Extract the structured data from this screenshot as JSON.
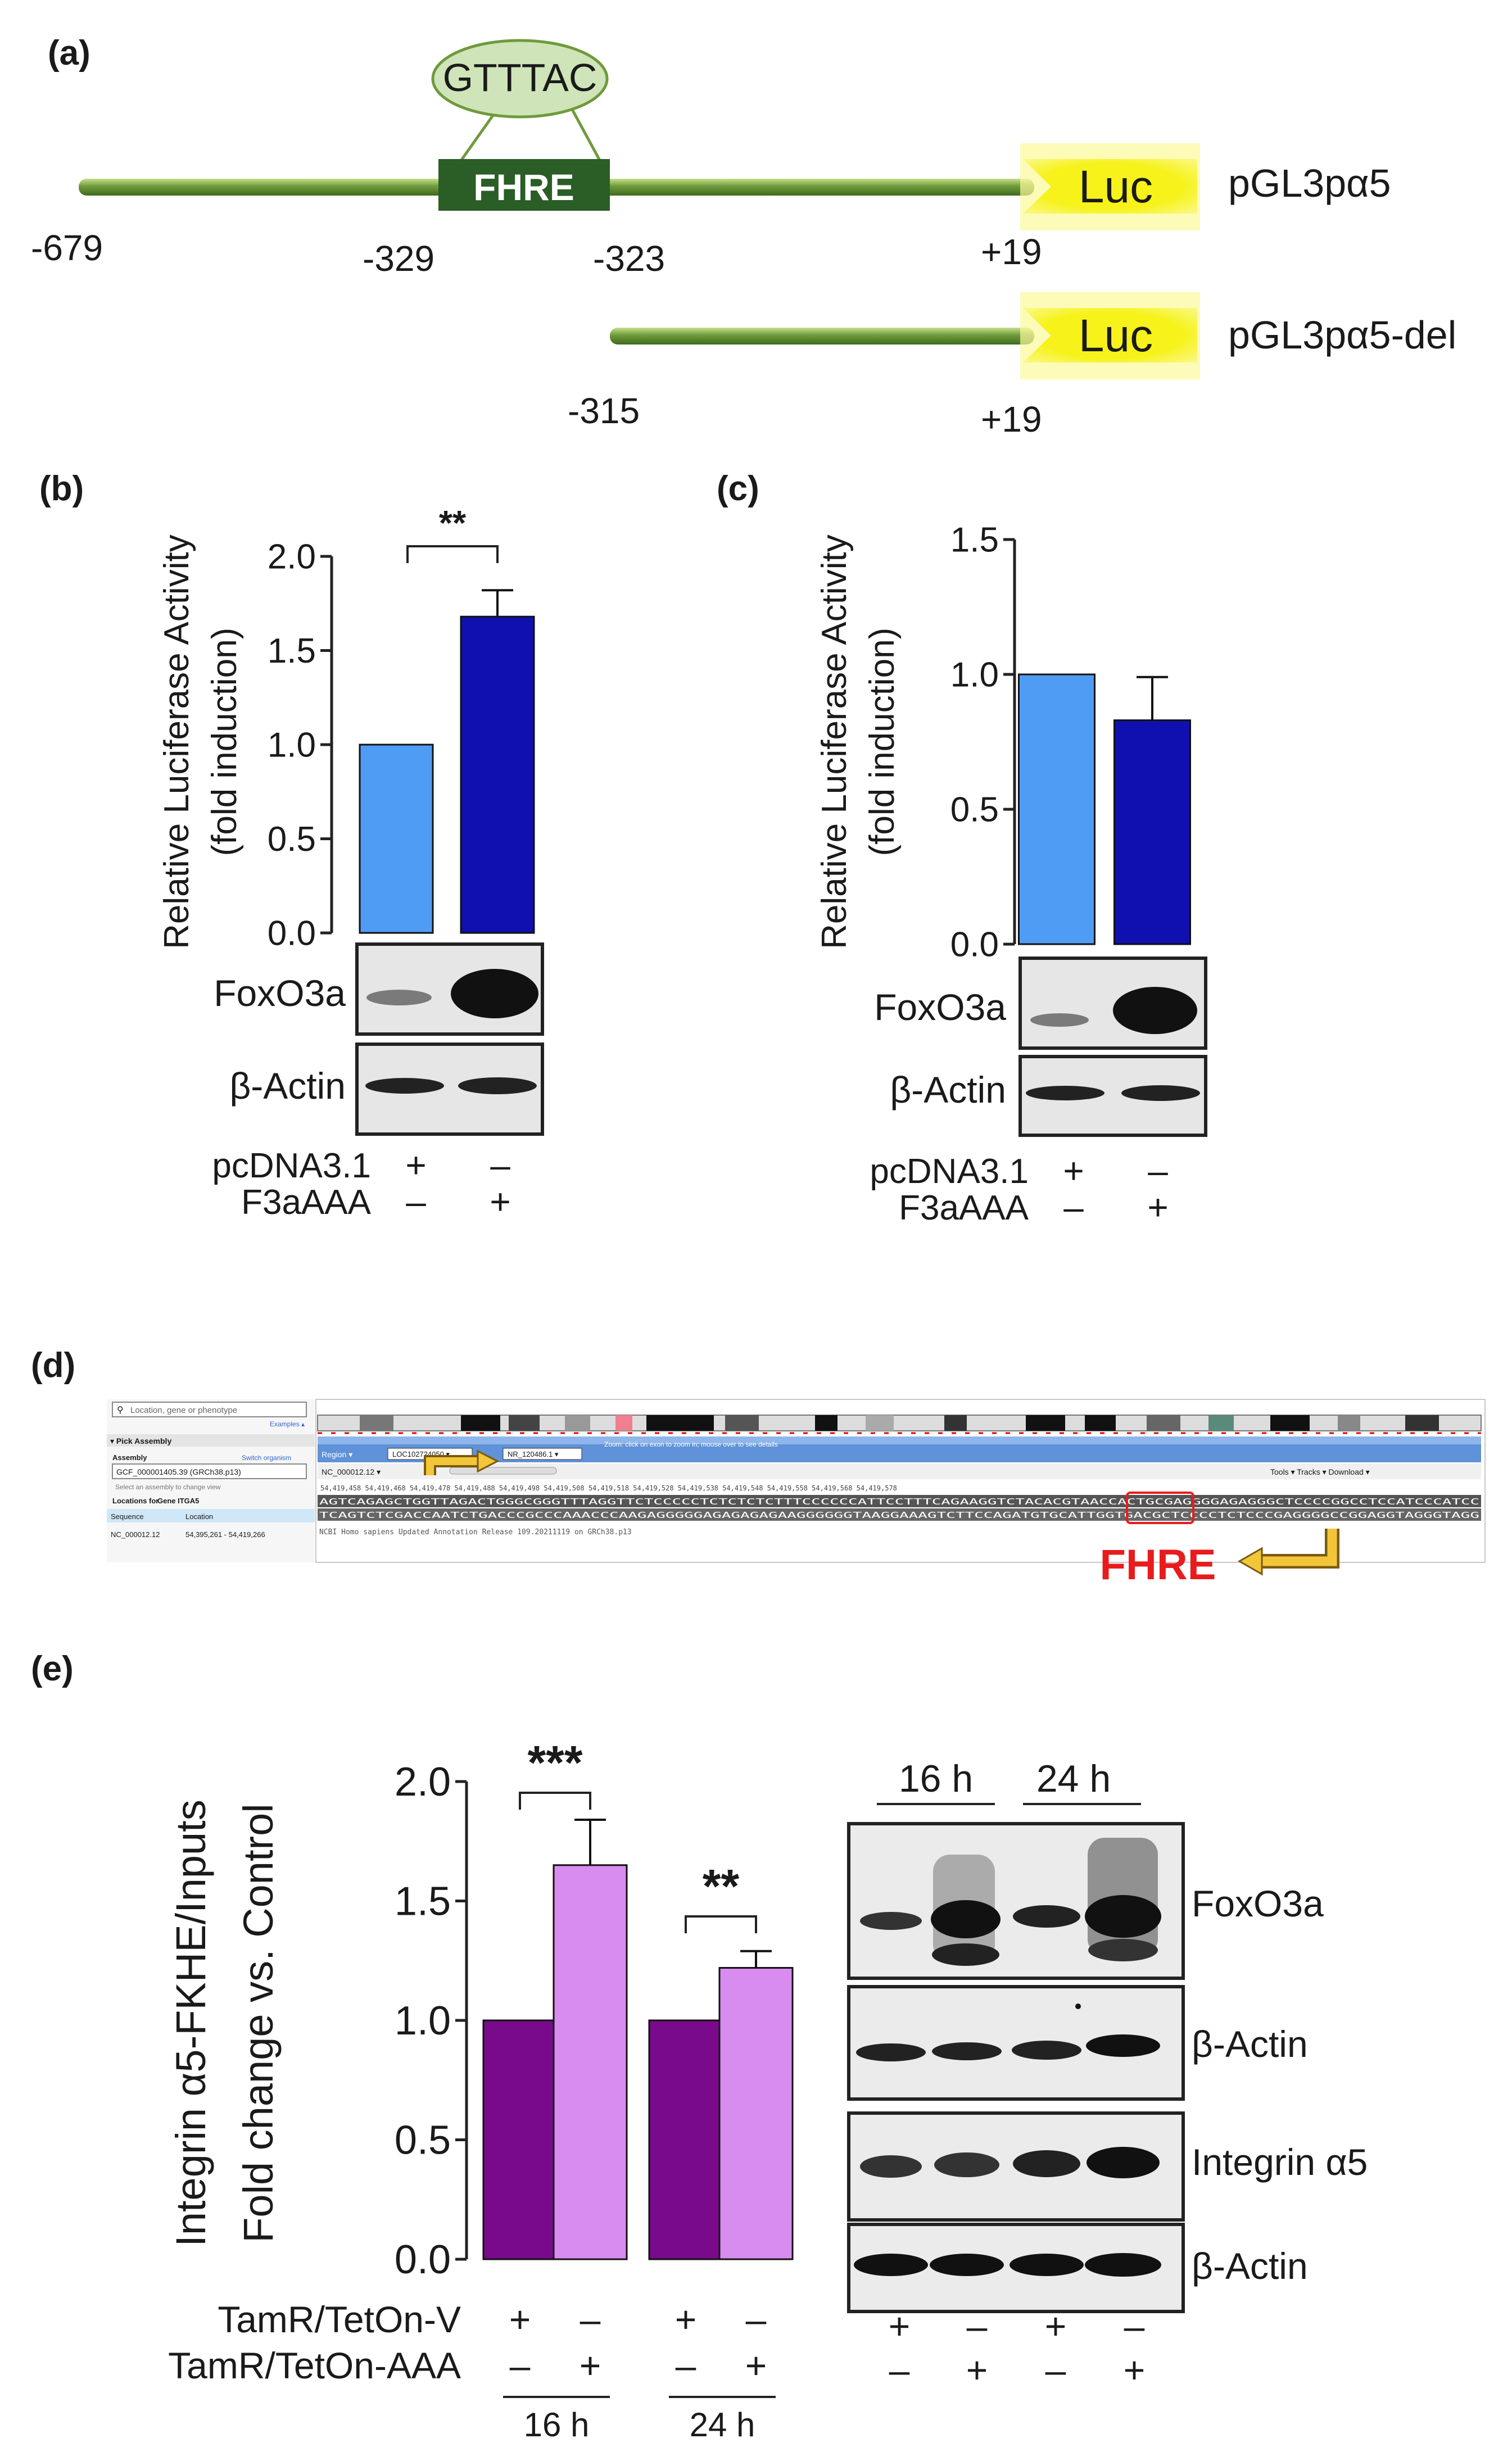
{
  "panel_labels": {
    "a": "(a)",
    "b": "(b)",
    "c": "(c)",
    "d": "(d)",
    "e": "(e)"
  },
  "colors": {
    "ctrl_blue": "#4f9cf5",
    "f3a_blue": "#1010b0",
    "ctrl_purple": "#7a0a8c",
    "aaa_pink": "#d98cf0",
    "fhre_red": "#e81c1c",
    "luc_yellow": "#f3f01c",
    "promoter_green": "#6f9a3c",
    "fhre_box": "#2b5d26"
  },
  "panel_a": {
    "motif": "GTTTAC",
    "fhre": "FHRE",
    "luc": "Luc",
    "construct1": "pGL3pα5",
    "construct2": "pGL3pα5-del",
    "pos_679": "-679",
    "pos_329": "-329",
    "pos_323": "-323",
    "pos_19a": "+19",
    "pos_315": "-315",
    "pos_19b": "+19"
  },
  "blots": {
    "foxo3a": "FoxO3a",
    "actin": "β-Actin",
    "itga5": "Integrin α5",
    "pcdna": "pcDNA3.1",
    "f3aaaa": "F3aAAA",
    "plus": "+",
    "minus": "–",
    "tetv": "TamR/TetOn-V",
    "tetaaa": "TamR/TetOn-AAA",
    "h16": "16 h",
    "h24": "24 h"
  },
  "chart_data": [
    {
      "id": "b",
      "type": "bar",
      "ylabel1": "Relative Luciferase Activity",
      "ylabel2": "(fold induction)",
      "ylim": [
        0,
        2.0
      ],
      "yticks": [
        "0.0",
        "0.5",
        "1.0",
        "1.5",
        "2.0"
      ],
      "categories": [
        "pcDNA3.1",
        "F3aAAA"
      ],
      "values": [
        1.0,
        1.68
      ],
      "errors": [
        0,
        0.14
      ],
      "significance": "**"
    },
    {
      "id": "c",
      "type": "bar",
      "ylabel1": "Relative Luciferase Activity",
      "ylabel2": "(fold induction)",
      "ylim": [
        0,
        1.5
      ],
      "yticks": [
        "0.0",
        "0.5",
        "1.0",
        "1.5"
      ],
      "categories": [
        "pcDNA3.1",
        "F3aAAA"
      ],
      "values": [
        1.0,
        0.83
      ],
      "errors": [
        0,
        0.16
      ]
    },
    {
      "id": "e",
      "type": "bar",
      "ylabel1": "Integrin α5-FKHE/Inputs",
      "ylabel2": "Fold change vs. Control",
      "ylim": [
        0,
        2.0
      ],
      "yticks": [
        "0.0",
        "0.5",
        "1.0",
        "1.5",
        "2.0"
      ],
      "categories": [
        "16 h V",
        "16 h AAA",
        "24 h V",
        "24 h AAA"
      ],
      "values": [
        1.0,
        1.65,
        1.0,
        1.22
      ],
      "errors": [
        0,
        0.19,
        0,
        0.07
      ],
      "significance": [
        "***",
        "**"
      ]
    }
  ],
  "panel_d": {
    "search_placeholder": "Location, gene or phenotype",
    "examples": "Examples ▴",
    "pick_assembly": "▾ Pick Assembly",
    "assembly_label": "Assembly",
    "switch_organism": "Switch organism",
    "assembly_value": "GCF_000001405.39 (GRCh38.p13)",
    "assembly_hint": "Select an assembly to change view",
    "locations_for": "Locations for",
    "gene": "Gene ITGA5",
    "col_sequence": "Sequence",
    "col_location": "Location",
    "row_seq": "NC_000012.12",
    "row_loc": "54,395,261 - 54,419,266",
    "region": "Region ▾",
    "gene_box": "LOC102724050 ▾",
    "transcript_box": "NR_120486.1 ▾",
    "nc_label": "NC_000012.12 ▾",
    "tools": "Tools ▾  Tracks ▾  Download ▾",
    "hint": "Zoom: click on exon to zoom in; mouse over to see details",
    "seq_top": "AGTCAGAGCTGGTTAGACTGGGCGGGTTTAGGTTCTCCCCCTCTCTCTCTTTCCCCCCATTCCTTTCAGAAGGTCTACACGTAACCACTGCGAGGGGAGAGGGCTCCCCGGCCTCCATCCCATCC",
    "seq_bot": "TCAGTCTCGACCAATCTGACCCGCCCAAACCCAAGAGGGGGAGAGAGAGAAGGGGGGTAAGGAAAGTCTTCCAGATGTGCATTGGTGACGCTCCCCTCTCCCGAGGGGCCGGAGGTAGGGTAGG",
    "annotation": "NCBI Homo sapiens Updated Annotation Release 109.20211119 on GRCh38.p13",
    "coords": "54,419,458   54,419,468   54,419,478   54,419,488   54,419,498   54,419,508   54,419,518   54,419,528   54,419,538   54,419,548   54,419,558   54,419,568   54,419,578",
    "fhre_label": "FHRE"
  }
}
